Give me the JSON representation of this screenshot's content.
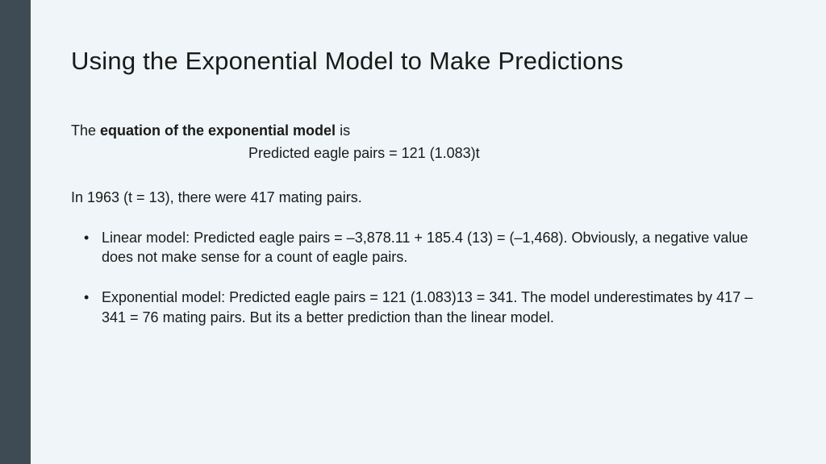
{
  "slide": {
    "title": "Using the Exponential Model to Make Predictions",
    "intro_prefix": "The ",
    "intro_bold": "equation of the exponential model",
    "intro_suffix": " is",
    "equation": "Predicted eagle pairs = 121 (1.083)t",
    "context": "In 1963 (t = 13), there were 417 mating pairs.",
    "bullets": [
      "Linear model: Predicted eagle pairs = –3,878.11 + 185.4 (13) = (–1,468). Obviously, a negative value does not make sense for a count of eagle pairs.",
      "Exponential model: Predicted eagle pairs = 121 (1.083)13 = 341. The model underestimates by 417 – 341 = 76 mating pairs. But its a better prediction than the linear model."
    ]
  },
  "colors": {
    "background": "#eff5f8",
    "sidebar": "#3f4b54",
    "text": "#1a1a1a"
  }
}
